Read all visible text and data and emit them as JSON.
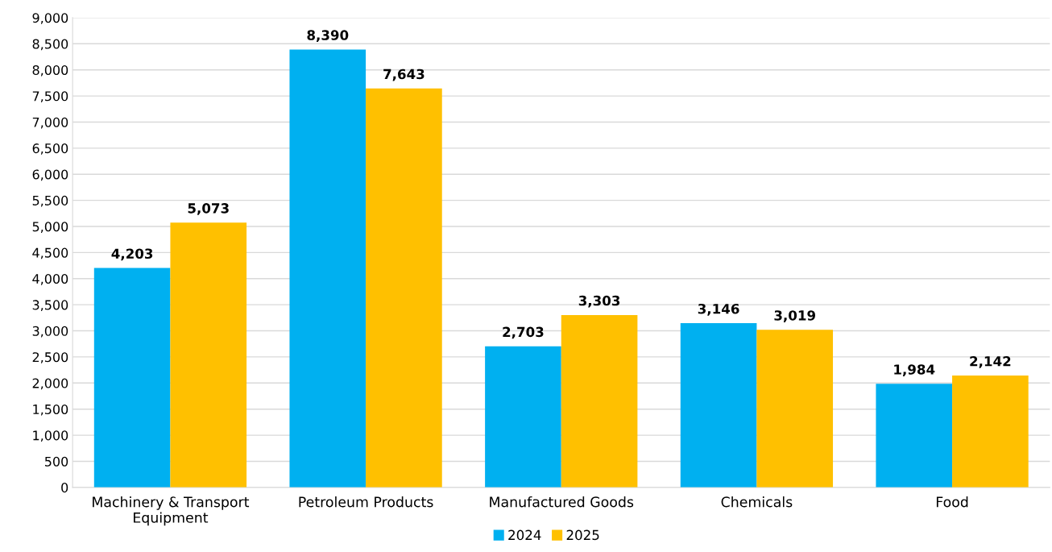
{
  "chart_data": {
    "type": "bar",
    "categories": [
      "Machinery & Transport\nEquipment",
      "Petroleum Products",
      "Manufactured Goods",
      "Chemicals",
      "Food"
    ],
    "series": [
      {
        "name": "2024",
        "color": "#00b0f0",
        "values": [
          4203,
          8390,
          2703,
          3146,
          1984
        ],
        "value_labels": [
          "4,203",
          "8,390",
          "2,703",
          "3,146",
          "1,984"
        ]
      },
      {
        "name": "2025",
        "color": "#ffc000",
        "values": [
          5073,
          7643,
          3303,
          3019,
          2142
        ],
        "value_labels": [
          "5,073",
          "7,643",
          "3,303",
          "3,019",
          "2,142"
        ]
      }
    ],
    "ylim": [
      0,
      9000
    ],
    "yticks": [
      0,
      {
        "value": 500,
        "label": "500"
      },
      {
        "value": 1000,
        "label": "1,000"
      },
      {
        "value": 1500,
        "label": "1,500"
      },
      {
        "value": 2000,
        "label": "2,000"
      },
      {
        "value": 2500,
        "label": "2,500"
      },
      {
        "value": 3000,
        "label": "3,000"
      },
      {
        "value": 3500,
        "label": "3,500"
      },
      {
        "value": 4000,
        "label": "4,000"
      },
      {
        "value": 4500,
        "label": "4,500"
      },
      {
        "value": 5000,
        "label": "5,000"
      },
      {
        "value": 5500,
        "label": "5,500"
      },
      {
        "value": 6000,
        "label": "6,000"
      },
      {
        "value": 6500,
        "label": "6,500"
      },
      {
        "value": 7000,
        "label": "7,000"
      },
      {
        "value": 7500,
        "label": "7,500"
      },
      {
        "value": 8000,
        "label": "8,000"
      },
      {
        "value": 8500,
        "label": "8,500"
      },
      {
        "value": 9000,
        "label": "9,000"
      }
    ],
    "grid": "y",
    "legend": "bottom"
  }
}
